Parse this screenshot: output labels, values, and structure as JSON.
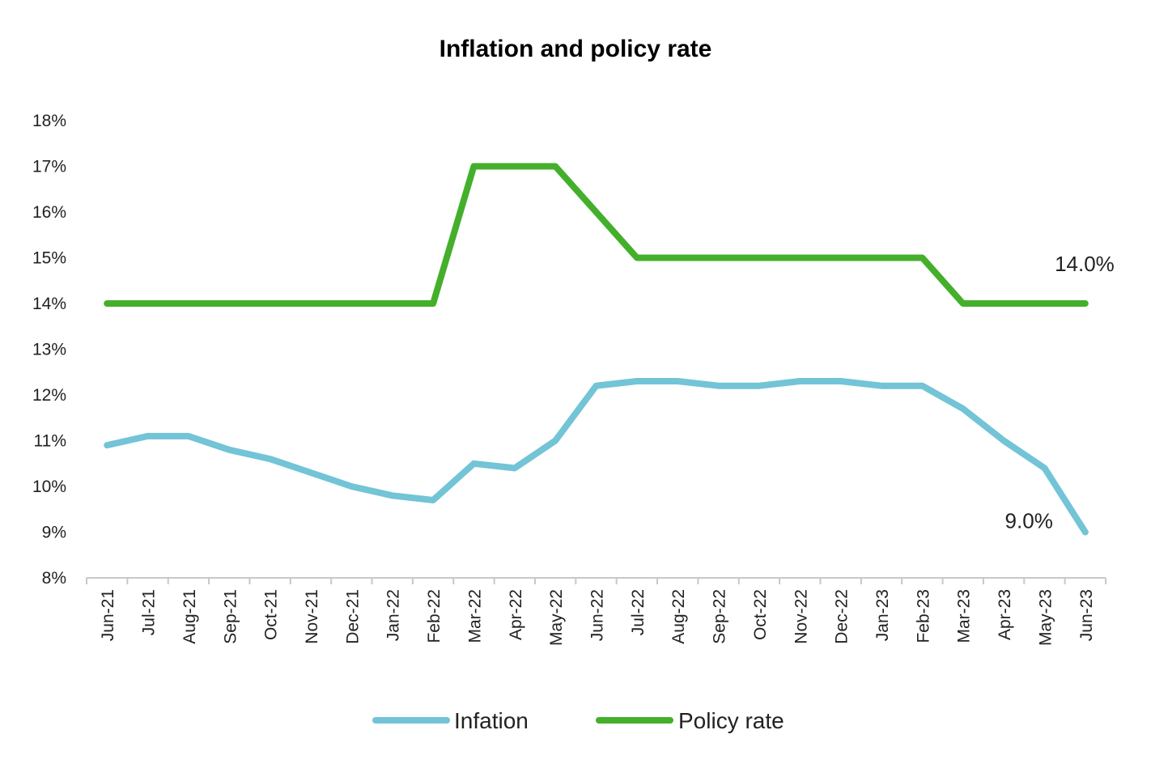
{
  "chart_data": {
    "type": "line",
    "title": "Inflation and policy rate",
    "xlabel": "",
    "ylabel": "",
    "ylim": [
      8,
      18
    ],
    "ytick_values": [
      8,
      9,
      10,
      11,
      12,
      13,
      14,
      15,
      16,
      17,
      18
    ],
    "ytick_labels": [
      "8%",
      "9%",
      "10%",
      "11%",
      "12%",
      "13%",
      "14%",
      "15%",
      "16%",
      "17%",
      "18%"
    ],
    "categories": [
      "Jun-21",
      "Jul-21",
      "Aug-21",
      "Sep-21",
      "Oct-21",
      "Nov-21",
      "Dec-21",
      "Jan-22",
      "Feb-22",
      "Mar-22",
      "Apr-22",
      "May-22",
      "Jun-22",
      "Jul-22",
      "Aug-22",
      "Sep-22",
      "Oct-22",
      "Nov-22",
      "Dec-22",
      "Jan-23",
      "Feb-23",
      "Mar-23",
      "Apr-23",
      "May-23",
      "Jun-23"
    ],
    "series": [
      {
        "name": "Infation",
        "color": "#72C4D6",
        "values": [
          10.9,
          11.1,
          11.1,
          10.8,
          10.6,
          10.3,
          10.0,
          9.8,
          9.7,
          10.5,
          10.4,
          11.0,
          12.2,
          12.3,
          12.3,
          12.2,
          12.2,
          12.3,
          12.3,
          12.2,
          12.2,
          11.7,
          11.0,
          10.4,
          9.0
        ],
        "end_label": "9.0%"
      },
      {
        "name": "Policy rate",
        "color": "#44AF2B",
        "values": [
          14,
          14,
          14,
          14,
          14,
          14,
          14,
          14,
          14,
          17,
          17,
          17,
          16,
          15,
          15,
          15,
          15,
          15,
          15,
          15,
          15,
          14,
          14,
          14,
          14
        ],
        "end_label": "14.0%"
      }
    ],
    "legend_position": "bottom",
    "grid": false
  }
}
